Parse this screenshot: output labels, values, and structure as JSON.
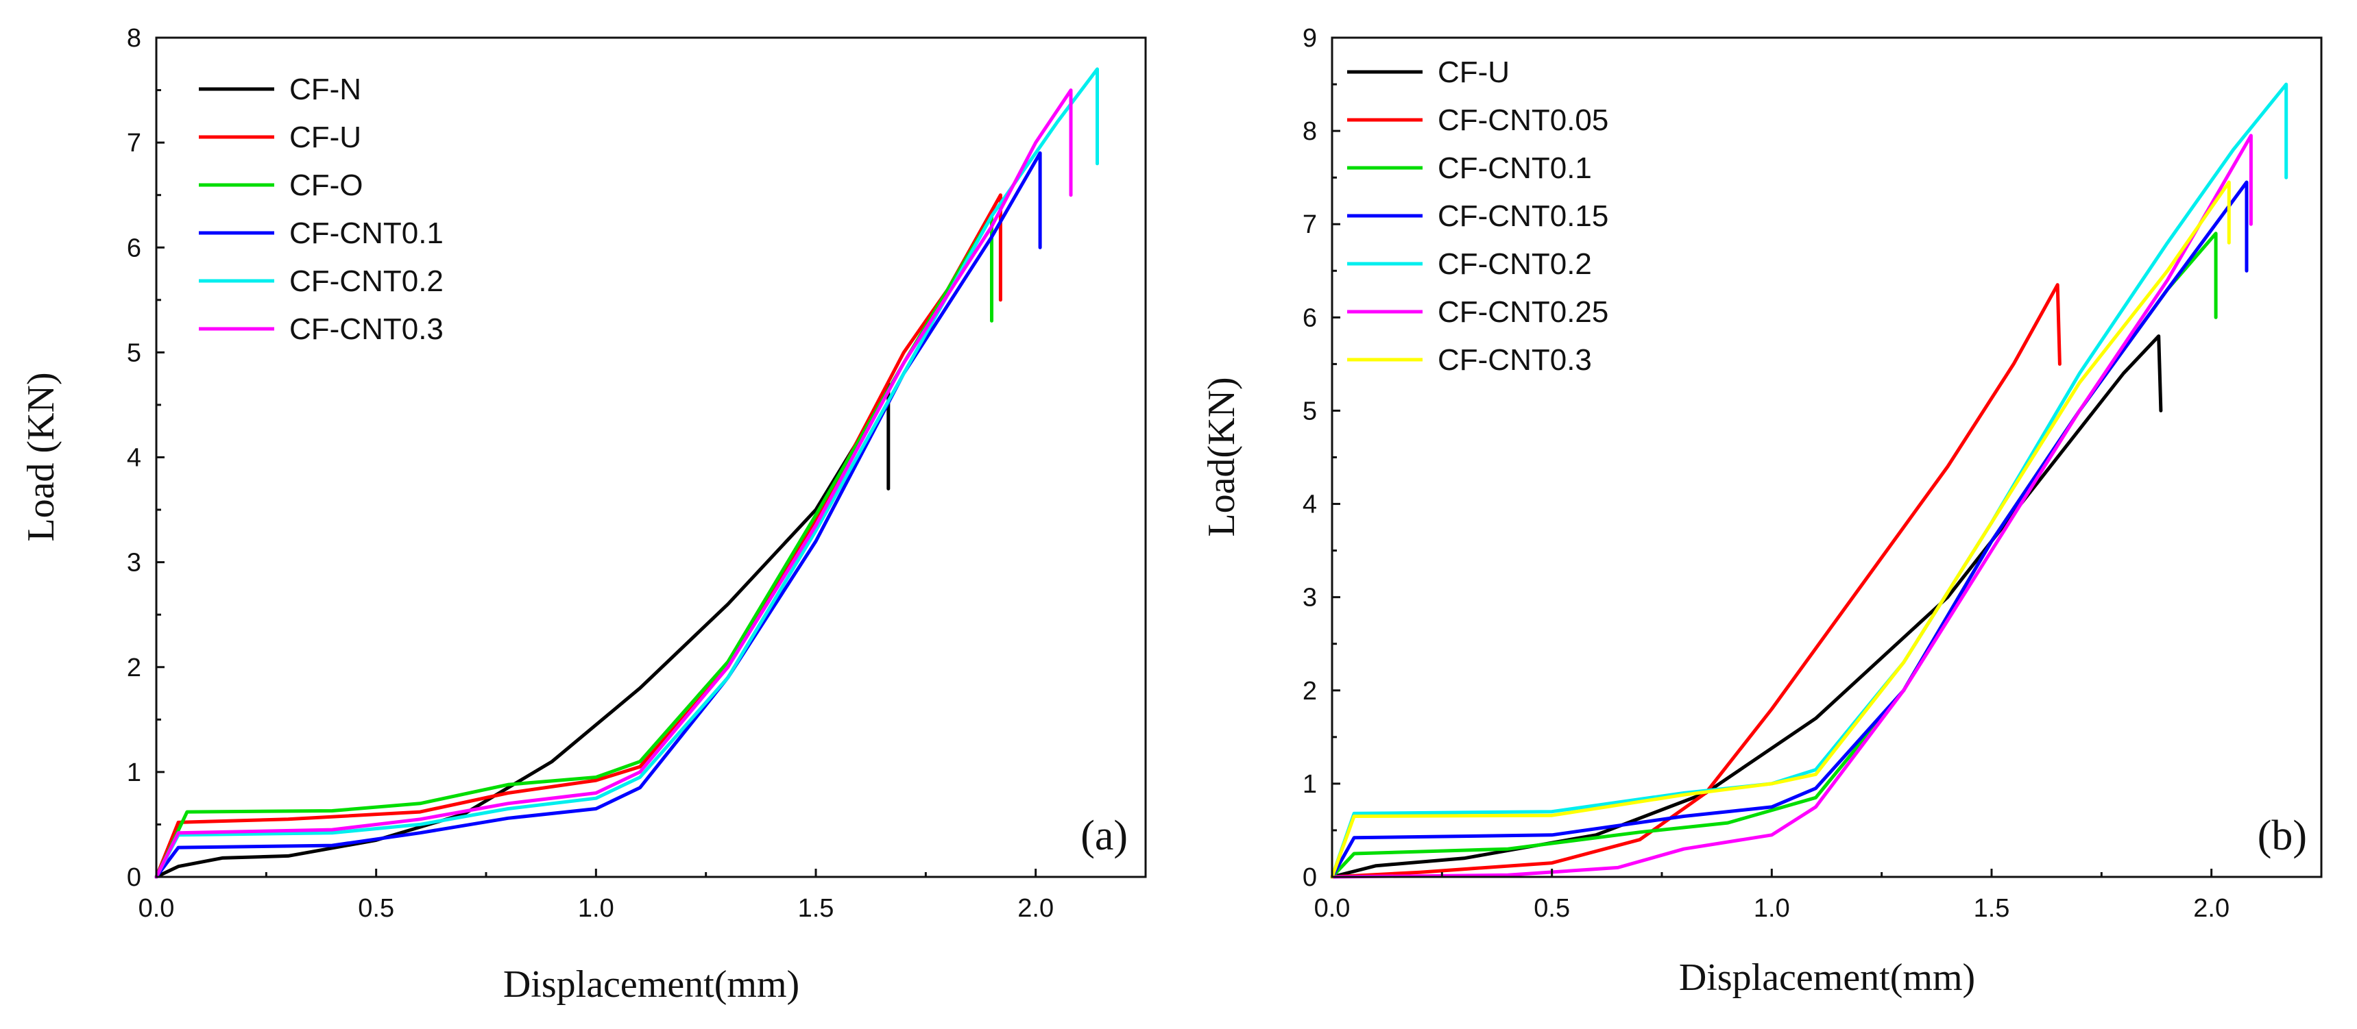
{
  "chart_data": [
    {
      "type": "line",
      "panel_label": "(a)",
      "xlabel": "Displacement(mm)",
      "ylabel": "Load (KN)",
      "xlim": [
        0,
        2.25
      ],
      "ylim": [
        0,
        8
      ],
      "xticks": [
        0.0,
        0.5,
        1.0,
        1.5,
        2.0
      ],
      "xtick_labels": [
        "0.0",
        "0.5",
        "1.0",
        "1.5",
        "2.0"
      ],
      "yticks": [
        0,
        1,
        2,
        3,
        4,
        5,
        6,
        7,
        8
      ],
      "ytick_labels": [
        "0",
        "1",
        "2",
        "3",
        "4",
        "5",
        "6",
        "7",
        "8"
      ],
      "legend_position": "top-left",
      "series": [
        {
          "name": "CF-N",
          "color": "#000000",
          "points": [
            [
              0,
              0
            ],
            [
              0.05,
              0.1
            ],
            [
              0.15,
              0.18
            ],
            [
              0.3,
              0.2
            ],
            [
              0.5,
              0.35
            ],
            [
              0.7,
              0.6
            ],
            [
              0.9,
              1.1
            ],
            [
              1.1,
              1.8
            ],
            [
              1.3,
              2.6
            ],
            [
              1.5,
              3.5
            ],
            [
              1.66,
              4.6
            ],
            [
              1.665,
              4.7
            ],
            [
              1.665,
              3.7
            ]
          ]
        },
        {
          "name": "CF-U",
          "color": "#ff0000",
          "points": [
            [
              0,
              0
            ],
            [
              0.05,
              0.52
            ],
            [
              0.3,
              0.55
            ],
            [
              0.6,
              0.62
            ],
            [
              0.8,
              0.8
            ],
            [
              1.0,
              0.92
            ],
            [
              1.1,
              1.05
            ],
            [
              1.3,
              2.0
            ],
            [
              1.5,
              3.4
            ],
            [
              1.7,
              5.0
            ],
            [
              1.8,
              5.6
            ],
            [
              1.92,
              6.5
            ],
            [
              1.92,
              5.5
            ]
          ]
        },
        {
          "name": "CF-O",
          "color": "#00dd00",
          "points": [
            [
              0,
              0
            ],
            [
              0.07,
              0.62
            ],
            [
              0.4,
              0.63
            ],
            [
              0.6,
              0.7
            ],
            [
              0.8,
              0.88
            ],
            [
              1.0,
              0.95
            ],
            [
              1.1,
              1.1
            ],
            [
              1.3,
              2.05
            ],
            [
              1.5,
              3.45
            ],
            [
              1.7,
              4.9
            ],
            [
              1.8,
              5.6
            ],
            [
              1.9,
              6.3
            ],
            [
              1.9,
              5.3
            ]
          ]
        },
        {
          "name": "CF-CNT0.1",
          "color": "#0000ff",
          "points": [
            [
              0,
              0
            ],
            [
              0.05,
              0.28
            ],
            [
              0.4,
              0.3
            ],
            [
              0.6,
              0.42
            ],
            [
              0.8,
              0.56
            ],
            [
              1.0,
              0.65
            ],
            [
              1.1,
              0.85
            ],
            [
              1.3,
              1.9
            ],
            [
              1.5,
              3.2
            ],
            [
              1.7,
              4.8
            ],
            [
              1.9,
              6.1
            ],
            [
              2.01,
              6.9
            ],
            [
              2.01,
              6.0
            ]
          ]
        },
        {
          "name": "CF-CNT0.2",
          "color": "#00eeee",
          "points": [
            [
              0,
              0
            ],
            [
              0.05,
              0.4
            ],
            [
              0.4,
              0.42
            ],
            [
              0.6,
              0.5
            ],
            [
              0.8,
              0.65
            ],
            [
              1.0,
              0.75
            ],
            [
              1.1,
              0.95
            ],
            [
              1.3,
              1.9
            ],
            [
              1.5,
              3.3
            ],
            [
              1.7,
              4.8
            ],
            [
              1.9,
              6.3
            ],
            [
              2.05,
              7.2
            ],
            [
              2.14,
              7.7
            ],
            [
              2.14,
              6.8
            ]
          ]
        },
        {
          "name": "CF-CNT0.3",
          "color": "#ff00ff",
          "points": [
            [
              0,
              0
            ],
            [
              0.05,
              0.42
            ],
            [
              0.4,
              0.45
            ],
            [
              0.6,
              0.55
            ],
            [
              0.8,
              0.7
            ],
            [
              1.0,
              0.8
            ],
            [
              1.1,
              1.0
            ],
            [
              1.3,
              2.0
            ],
            [
              1.5,
              3.35
            ],
            [
              1.7,
              4.9
            ],
            [
              1.9,
              6.2
            ],
            [
              2.0,
              7.0
            ],
            [
              2.08,
              7.5
            ],
            [
              2.08,
              6.5
            ]
          ]
        }
      ]
    },
    {
      "type": "line",
      "panel_label": "(b)",
      "xlabel": "Displacement(mm)",
      "ylabel": "Load(KN)",
      "xlim": [
        0,
        2.25
      ],
      "ylim": [
        0,
        9
      ],
      "xticks": [
        0.0,
        0.5,
        1.0,
        1.5,
        2.0
      ],
      "xtick_labels": [
        "0.0",
        "0.5",
        "1.0",
        "1.5",
        "2.0"
      ],
      "yticks": [
        0,
        1,
        2,
        3,
        4,
        5,
        6,
        7,
        8,
        9
      ],
      "ytick_labels": [
        "0",
        "1",
        "2",
        "3",
        "4",
        "5",
        "6",
        "7",
        "8",
        "9"
      ],
      "legend_position": "top-left",
      "series": [
        {
          "name": "CF-U",
          "color": "#000000",
          "points": [
            [
              0,
              0
            ],
            [
              0.1,
              0.12
            ],
            [
              0.3,
              0.2
            ],
            [
              0.6,
              0.45
            ],
            [
              0.85,
              0.9
            ],
            [
              1.1,
              1.7
            ],
            [
              1.4,
              3.0
            ],
            [
              1.6,
              4.2
            ],
            [
              1.8,
              5.4
            ],
            [
              1.88,
              5.8
            ],
            [
              1.885,
              5.0
            ]
          ]
        },
        {
          "name": "CF-CNT0.05",
          "color": "#ff0000",
          "points": [
            [
              0,
              0
            ],
            [
              0.2,
              0.05
            ],
            [
              0.5,
              0.15
            ],
            [
              0.7,
              0.4
            ],
            [
              0.85,
              0.9
            ],
            [
              1.0,
              1.8
            ],
            [
              1.2,
              3.1
            ],
            [
              1.4,
              4.4
            ],
            [
              1.55,
              5.5
            ],
            [
              1.65,
              6.35
            ],
            [
              1.655,
              5.5
            ]
          ]
        },
        {
          "name": "CF-CNT0.1",
          "color": "#00dd00",
          "points": [
            [
              0,
              0
            ],
            [
              0.05,
              0.25
            ],
            [
              0.4,
              0.3
            ],
            [
              0.7,
              0.48
            ],
            [
              0.9,
              0.58
            ],
            [
              1.1,
              0.85
            ],
            [
              1.3,
              2.0
            ],
            [
              1.5,
              3.6
            ],
            [
              1.7,
              5.0
            ],
            [
              1.9,
              6.3
            ],
            [
              2.01,
              6.9
            ],
            [
              2.01,
              6.0
            ]
          ]
        },
        {
          "name": "CF-CNT0.15",
          "color": "#0000ff",
          "points": [
            [
              0,
              0
            ],
            [
              0.05,
              0.42
            ],
            [
              0.5,
              0.45
            ],
            [
              0.8,
              0.65
            ],
            [
              1.0,
              0.75
            ],
            [
              1.1,
              0.95
            ],
            [
              1.3,
              2.0
            ],
            [
              1.5,
              3.6
            ],
            [
              1.7,
              5.0
            ],
            [
              1.9,
              6.3
            ],
            [
              2.08,
              7.45
            ],
            [
              2.08,
              6.5
            ]
          ]
        },
        {
          "name": "CF-CNT0.2",
          "color": "#00eeee",
          "points": [
            [
              0,
              0
            ],
            [
              0.05,
              0.68
            ],
            [
              0.5,
              0.7
            ],
            [
              0.8,
              0.9
            ],
            [
              1.0,
              1.0
            ],
            [
              1.1,
              1.15
            ],
            [
              1.3,
              2.3
            ],
            [
              1.5,
              3.8
            ],
            [
              1.7,
              5.4
            ],
            [
              1.9,
              6.8
            ],
            [
              2.05,
              7.8
            ],
            [
              2.17,
              8.5
            ],
            [
              2.17,
              7.5
            ]
          ]
        },
        {
          "name": "CF-CNT0.25",
          "color": "#ff00ff",
          "points": [
            [
              0,
              0
            ],
            [
              0.4,
              0.02
            ],
            [
              0.65,
              0.1
            ],
            [
              0.8,
              0.3
            ],
            [
              1.0,
              0.45
            ],
            [
              1.1,
              0.75
            ],
            [
              1.3,
              2.0
            ],
            [
              1.5,
              3.5
            ],
            [
              1.7,
              5.0
            ],
            [
              1.9,
              6.4
            ],
            [
              2.09,
              7.95
            ],
            [
              2.09,
              7.0
            ]
          ]
        },
        {
          "name": "CF-CNT0.3",
          "color": "#ffff00",
          "points": [
            [
              0,
              0
            ],
            [
              0.05,
              0.65
            ],
            [
              0.5,
              0.66
            ],
            [
              0.8,
              0.88
            ],
            [
              1.0,
              1.0
            ],
            [
              1.1,
              1.1
            ],
            [
              1.3,
              2.3
            ],
            [
              1.5,
              3.8
            ],
            [
              1.7,
              5.3
            ],
            [
              1.9,
              6.5
            ],
            [
              2.04,
              7.45
            ],
            [
              2.04,
              6.8
            ]
          ]
        }
      ]
    }
  ]
}
